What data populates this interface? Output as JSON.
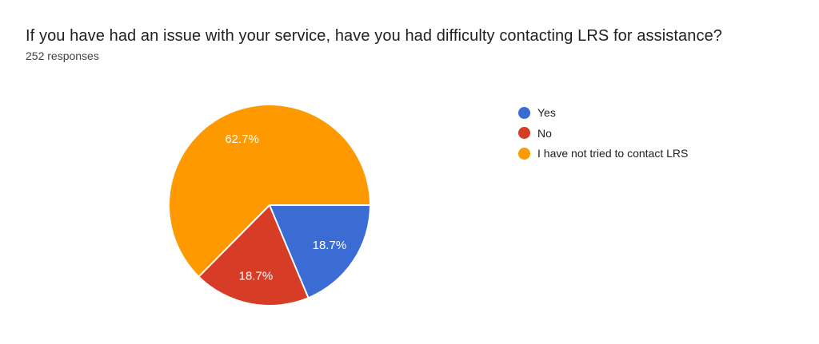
{
  "header": {
    "title": "If you have had an issue with your service, have you had difficulty contacting LRS for assistance?",
    "responses": "252 responses"
  },
  "chart_data": {
    "type": "pie",
    "title": "If you have had an issue with your service, have you had difficulty contacting LRS for assistance?",
    "subtitle": "252 responses",
    "categories": [
      "Yes",
      "No",
      "I have not tried to contact LRS"
    ],
    "values": [
      18.7,
      18.7,
      62.7
    ],
    "slice_labels": [
      "18.7%",
      "18.7%",
      "62.7%"
    ],
    "colors": [
      "#3B6CD4",
      "#D63C26",
      "#FF9900"
    ],
    "start_angle_deg": 90,
    "direction": "clockwise",
    "legend_position": "right",
    "label_color": "#FFFFFF",
    "separator_color": "#FFFFFF",
    "background": "#FFFFFF"
  }
}
